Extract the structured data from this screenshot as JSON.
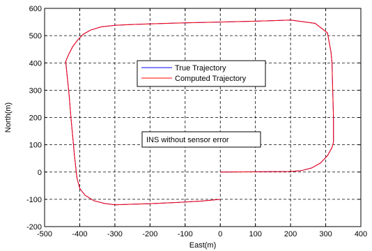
{
  "chart_data": {
    "type": "line",
    "title": "",
    "xlabel": "East(m)",
    "ylabel": "North(m)",
    "xlim": [
      -500,
      400
    ],
    "ylim": [
      -200,
      600
    ],
    "xticks": [
      -500,
      -400,
      -300,
      -200,
      -100,
      0,
      100,
      200,
      300,
      400
    ],
    "yticks": [
      -200,
      -100,
      0,
      100,
      200,
      300,
      400,
      500,
      600
    ],
    "grid": true,
    "grid_style": "dashed",
    "legend": "center",
    "annotation": "INS without sensor error",
    "series": [
      {
        "name": "True Trajectory",
        "color": "#0000ff",
        "x": [
          0,
          200,
          230,
          260,
          285,
          305,
          318,
          322,
          322,
          320,
          318,
          315,
          305,
          270,
          200,
          100,
          0,
          -100,
          -200,
          -250,
          -300,
          -340,
          -370,
          -390,
          -405,
          -420,
          -430,
          -437,
          -440,
          -438,
          -434,
          -430,
          -425,
          -420,
          -415,
          -408,
          -400,
          -385,
          -360,
          -330,
          -300,
          -250,
          -200,
          -150,
          -100,
          -50,
          0
        ],
        "y": [
          0,
          2,
          5,
          15,
          33,
          60,
          90,
          110,
          200,
          300,
          400,
          440,
          510,
          545,
          557,
          553,
          550,
          547,
          543,
          541,
          538,
          532,
          520,
          505,
          485,
          460,
          435,
          415,
          405,
          380,
          330,
          280,
          200,
          130,
          60,
          -20,
          -60,
          -85,
          -105,
          -115,
          -120,
          -118,
          -116,
          -113,
          -110,
          -106,
          -100
        ]
      },
      {
        "name": "Computed Trajectory",
        "color": "#ff0000",
        "x": [
          0,
          200,
          230,
          260,
          285,
          305,
          318,
          322,
          322,
          320,
          318,
          315,
          305,
          270,
          200,
          100,
          0,
          -100,
          -200,
          -250,
          -300,
          -340,
          -370,
          -390,
          -405,
          -420,
          -430,
          -437,
          -440,
          -438,
          -434,
          -430,
          -425,
          -420,
          -415,
          -408,
          -400,
          -385,
          -360,
          -330,
          -300,
          -250,
          -200,
          -150,
          -100,
          -50,
          0
        ],
        "y": [
          0,
          2,
          5,
          15,
          33,
          60,
          90,
          110,
          200,
          300,
          400,
          440,
          510,
          545,
          557,
          553,
          550,
          547,
          543,
          541,
          538,
          532,
          520,
          505,
          485,
          460,
          435,
          415,
          405,
          380,
          330,
          280,
          200,
          130,
          60,
          -20,
          -60,
          -85,
          -105,
          -115,
          -120,
          -118,
          -116,
          -113,
          -110,
          -106,
          -100
        ]
      }
    ]
  }
}
